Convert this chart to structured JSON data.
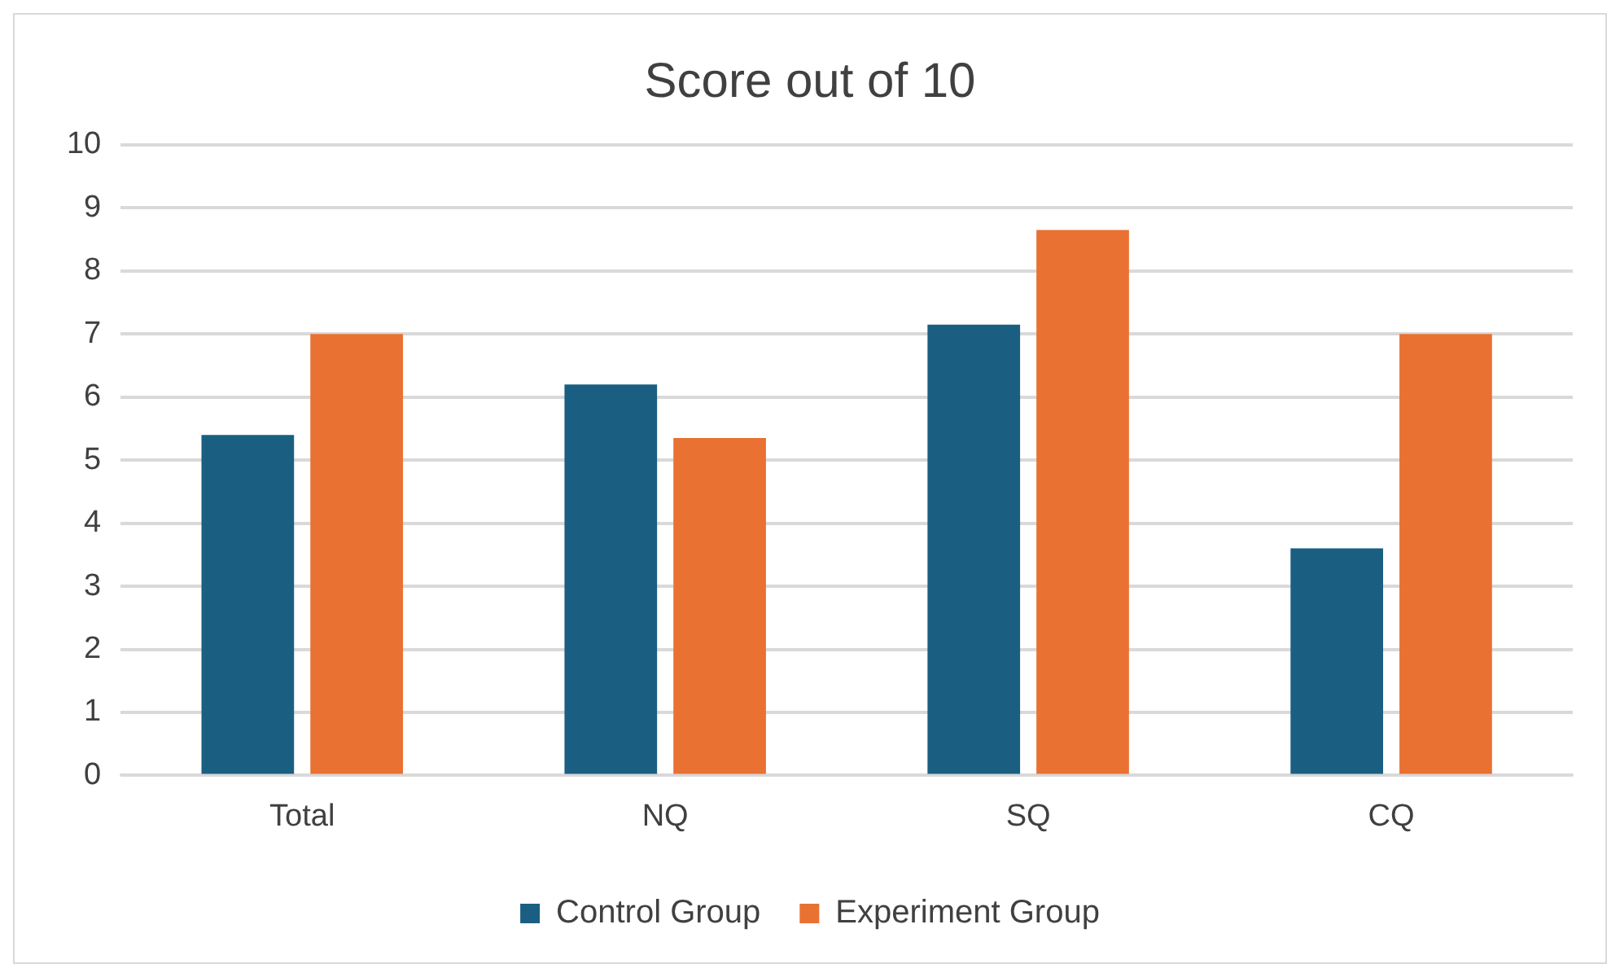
{
  "chart_data": {
    "type": "bar",
    "title": "Score out of 10",
    "categories": [
      "Total",
      "NQ",
      "SQ",
      "CQ"
    ],
    "series": [
      {
        "name": "Control Group",
        "color": "#1a5f82",
        "values": [
          5.4,
          6.2,
          7.15,
          3.6
        ]
      },
      {
        "name": "Experiment Group",
        "color": "#e97132",
        "values": [
          7.0,
          5.35,
          8.65,
          7.0
        ]
      }
    ],
    "ylim": [
      0,
      10
    ],
    "yticks": [
      0,
      1,
      2,
      3,
      4,
      5,
      6,
      7,
      8,
      9,
      10
    ],
    "grid": "y",
    "legend": "bottom"
  }
}
